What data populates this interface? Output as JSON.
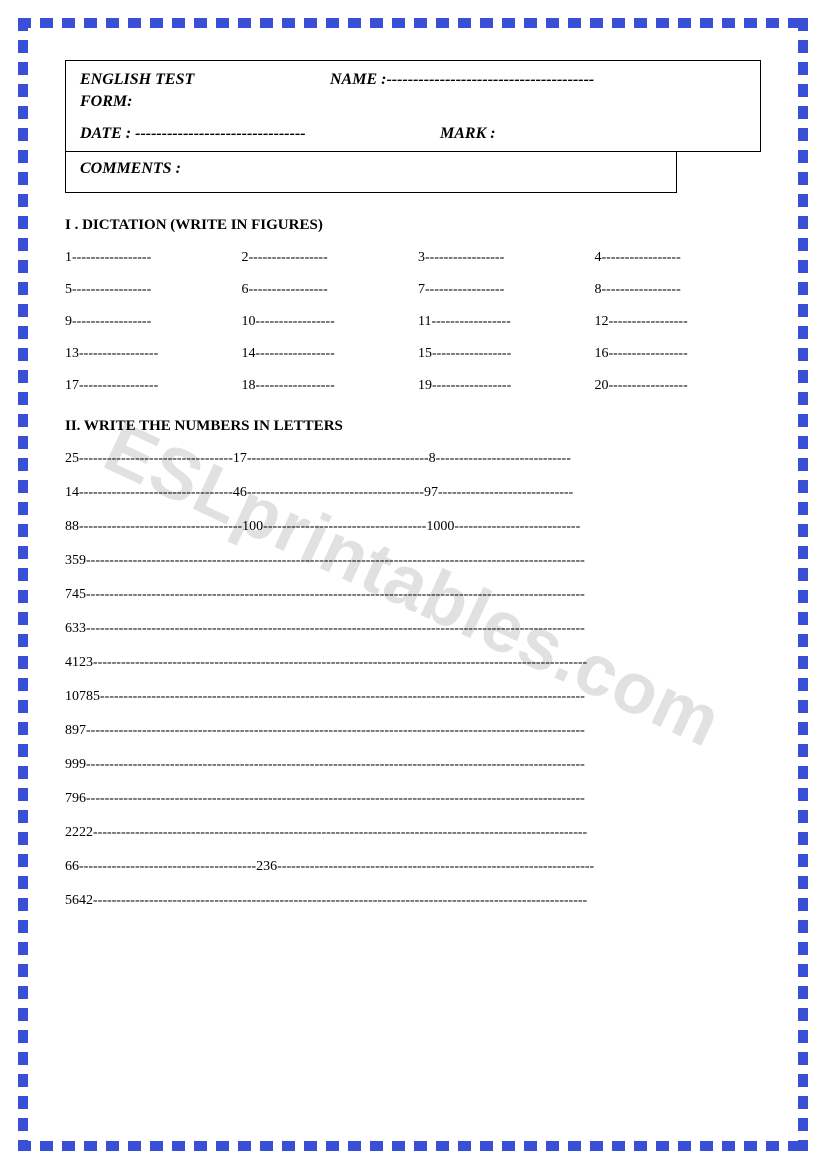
{
  "watermark": "ESLprintables.com",
  "header": {
    "english_test": "ENGLISH TEST",
    "name_label": "NAME :---------------------------------------",
    "form_label": "FORM:",
    "date_label": "DATE : --------------------------------",
    "mark_label": "MARK :",
    "comments_label": "COMMENTS :"
  },
  "section1": {
    "title": "I . DICTATION (WRITE IN FIGURES)",
    "items": [
      "1-----------------",
      "2-----------------",
      "3-----------------",
      "4-----------------",
      "5-----------------",
      "6-----------------",
      "7-----------------",
      "8-----------------",
      "9-----------------",
      "10-----------------",
      "11-----------------",
      "12-----------------",
      "13-----------------",
      "14-----------------",
      "15-----------------",
      "16-----------------",
      "17-----------------",
      "18-----------------",
      "19-----------------",
      "20-----------------"
    ]
  },
  "section2": {
    "title": "II. WRITE THE NUMBERS IN LETTERS",
    "rows": [
      "25---------------------------------17---------------------------------------8-----------------------------",
      "14---------------------------------46--------------------------------------97-----------------------------",
      "88-----------------------------------100-----------------------------------1000---------------------------",
      "359-----------------------------------------------------------------------------------------------------------",
      "745-----------------------------------------------------------------------------------------------------------",
      "633-----------------------------------------------------------------------------------------------------------",
      "4123----------------------------------------------------------------------------------------------------------",
      "10785--------------------------------------------------------------------------------------------------------",
      "897-----------------------------------------------------------------------------------------------------------",
      "999-----------------------------------------------------------------------------------------------------------",
      "796-----------------------------------------------------------------------------------------------------------",
      "2222----------------------------------------------------------------------------------------------------------",
      "66--------------------------------------236--------------------------------------------------------------------",
      "5642----------------------------------------------------------------------------------------------------------"
    ]
  }
}
